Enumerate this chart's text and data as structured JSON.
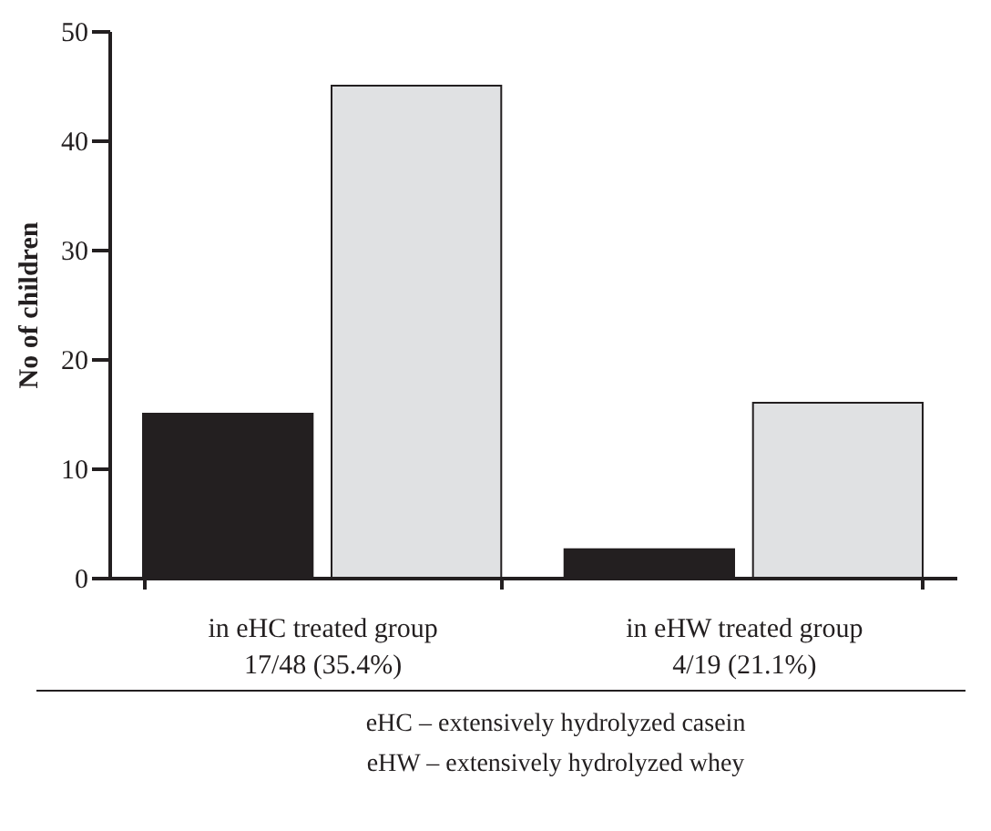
{
  "chart_data": {
    "type": "bar",
    "ylabel": "No of children",
    "categories": [
      "in eHC treated group\n17/48 (35.4%)",
      "in eHW treated group\n4/19 (21.1%)"
    ],
    "series": [
      {
        "color": "#231f20",
        "values": [
          15,
          2.6
        ]
      },
      {
        "color": "#e0e1e3",
        "values": [
          45,
          16
        ]
      }
    ],
    "ylim": [
      0,
      50
    ],
    "yticks": [
      0,
      10,
      20,
      30,
      40,
      50
    ],
    "grid": false,
    "annotations": [
      "eHC – extensively hydrolyzed casein",
      "eHW – extensively hydrolyzed whey"
    ]
  }
}
